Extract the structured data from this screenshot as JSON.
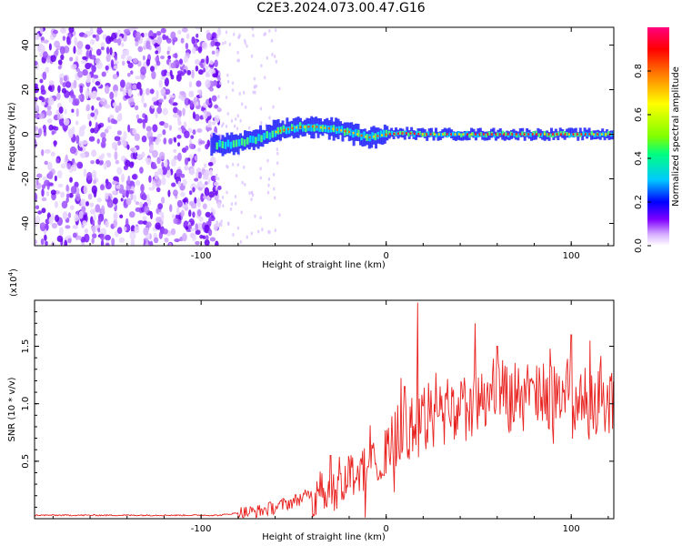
{
  "figure_title": "C2E3.2024.073.00.47.G16",
  "chart_data": [
    {
      "type": "heatmap",
      "xlabel": "Height of straight line (km)",
      "ylabel": "Frequency (Hz)",
      "xlim": [
        -190,
        123
      ],
      "ylim": [
        -50,
        48
      ],
      "x_ticks": [
        -100,
        0,
        100
      ],
      "y_ticks": [
        -40,
        -20,
        0,
        20,
        40
      ],
      "colorbar": {
        "label": "Normalized spectral amplitude",
        "range": [
          0,
          1
        ],
        "ticks": [
          "0.0",
          "0.2",
          "0.4",
          "0.6",
          "0.8"
        ],
        "colors": [
          "#ffffff",
          "#d9b3ff",
          "#8000ff",
          "#0000ff",
          "#00c8ff",
          "#00ff80",
          "#80ff00",
          "#ffff00",
          "#ff8000",
          "#ff0000",
          "#ff0080"
        ]
      },
      "grid": false,
      "description_points": {
        "noise_region_x": [
          -190,
          -90
        ],
        "signal_ridge_x": [
          -95,
          -80,
          -70,
          -60,
          -50,
          -40,
          -30,
          -20,
          -10,
          0,
          10,
          20,
          40,
          60,
          80,
          100,
          123
        ],
        "signal_ridge_freq": [
          -5,
          -4,
          -2,
          1,
          3,
          3.5,
          2.5,
          1,
          -1.5,
          0,
          0.5,
          0,
          0,
          0,
          0,
          0,
          0
        ]
      }
    },
    {
      "type": "line",
      "xlabel": "Height of straight line (km)",
      "ylabel": "SNR (10 * v/v)",
      "y_multiplier": "(x10^4)",
      "xlim": [
        -190,
        123
      ],
      "ylim": [
        0,
        1.9
      ],
      "x_ticks": [
        -100,
        0,
        100
      ],
      "y_ticks": [
        0.5,
        1.0,
        1.5
      ],
      "y_tick_labels": [
        "0.5",
        "1.0",
        "1.5"
      ],
      "grid": false,
      "series": [
        {
          "color": "#e8221f",
          "x": [
            -190,
            -160,
            -130,
            -100,
            -90,
            -80,
            -70,
            -60,
            -50,
            -40,
            -30,
            -20,
            -10,
            0,
            10,
            20,
            30,
            40,
            50,
            60,
            70,
            80,
            90,
            100,
            110,
            123
          ],
          "values": [
            0.03,
            0.03,
            0.03,
            0.03,
            0.03,
            0.05,
            0.06,
            0.1,
            0.15,
            0.22,
            0.25,
            0.4,
            0.45,
            0.6,
            0.75,
            0.85,
            0.9,
            0.95,
            1.0,
            1.0,
            1.05,
            1.05,
            1.05,
            1.05,
            1.0,
            1.05
          ],
          "peaks": [
            [
              17,
              1.88
            ],
            [
              -30,
              0.55
            ],
            [
              10,
              1.15
            ],
            [
              48,
              1.7
            ],
            [
              60,
              1.5
            ],
            [
              85,
              1.35
            ],
            [
              100,
              1.6
            ],
            [
              110,
              1.55
            ]
          ]
        }
      ]
    }
  ]
}
